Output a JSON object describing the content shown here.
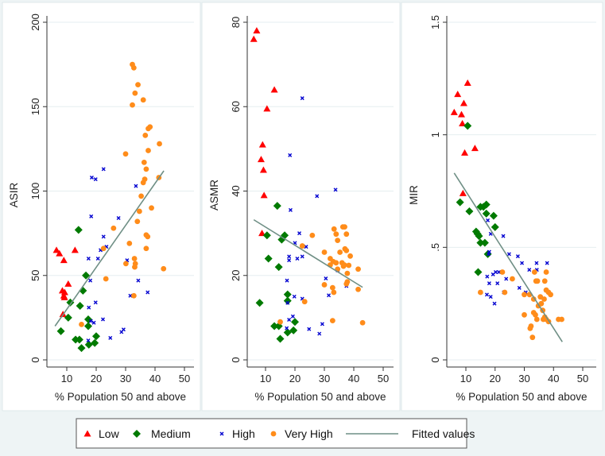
{
  "legend": {
    "items": [
      {
        "label": "Low",
        "marker": "triangle",
        "color": "#ff0000"
      },
      {
        "label": "Medium",
        "marker": "diamond",
        "color": "#007a00"
      },
      {
        "label": "High",
        "marker": "x",
        "color": "#0000d0"
      },
      {
        "label": "Very High",
        "marker": "circle",
        "color": "#ff8c1a"
      },
      {
        "label": "Fitted values",
        "marker": "line",
        "color": "#6f8f85"
      }
    ]
  },
  "chart_data": [
    {
      "type": "scatter",
      "ylabel": "ASIR",
      "xlabel": "% Population 50 and above",
      "xlim": [
        0,
        50
      ],
      "ylim": [
        0,
        200
      ],
      "xticks": [
        "10",
        "20",
        "30",
        "40",
        "50"
      ],
      "yticks": [
        "0",
        "50",
        "100",
        "150",
        "200"
      ],
      "grid": true,
      "series": [
        {
          "name": "Low",
          "points": [
            [
              6.5,
              65
            ],
            [
              7.5,
              63
            ],
            [
              9,
              59
            ],
            [
              12.8,
              65
            ],
            [
              10.5,
              45
            ],
            [
              8.5,
              41
            ],
            [
              9.3,
              40
            ],
            [
              9.2,
              37
            ],
            [
              9,
              38
            ],
            [
              8.7,
              27
            ]
          ]
        },
        {
          "name": "Medium",
          "points": [
            [
              14,
              77
            ],
            [
              16.5,
              50
            ],
            [
              15.5,
              41
            ],
            [
              11.2,
              34
            ],
            [
              14.5,
              32
            ],
            [
              10.5,
              25
            ],
            [
              17.3,
              24
            ],
            [
              17.3,
              20
            ],
            [
              8,
              17
            ],
            [
              13,
              12
            ],
            [
              14.3,
              12
            ],
            [
              20,
              14
            ],
            [
              17.5,
              9
            ],
            [
              19.5,
              10
            ],
            [
              15,
              7
            ]
          ]
        },
        {
          "name": "High",
          "points": [
            [
              22.5,
              113
            ],
            [
              18.5,
              108
            ],
            [
              19.8,
              107
            ],
            [
              33.5,
              103
            ],
            [
              18.3,
              85
            ],
            [
              27.6,
              84
            ],
            [
              22.5,
              73
            ],
            [
              23.5,
              67
            ],
            [
              21.5,
              65
            ],
            [
              17.4,
              60
            ],
            [
              20.6,
              60
            ],
            [
              30.5,
              59
            ],
            [
              18,
              47
            ],
            [
              34.3,
              47
            ],
            [
              37.5,
              40
            ],
            [
              31.6,
              38
            ],
            [
              19.8,
              34
            ],
            [
              17.5,
              31
            ],
            [
              22.3,
              24
            ],
            [
              18.2,
              23
            ],
            [
              19.2,
              22
            ],
            [
              29.3,
              18
            ],
            [
              28.6,
              16.5
            ],
            [
              24.8,
              13
            ],
            [
              17.3,
              11.5
            ]
          ]
        },
        {
          "name": "Very High",
          "points": [
            [
              32.3,
              175
            ],
            [
              32.8,
              173
            ],
            [
              34.2,
              163
            ],
            [
              33.2,
              158
            ],
            [
              36,
              154
            ],
            [
              32.3,
              151
            ],
            [
              38.3,
              138
            ],
            [
              37.7,
              137
            ],
            [
              36.7,
              133
            ],
            [
              41.5,
              128
            ],
            [
              30,
              122
            ],
            [
              37.7,
              124
            ],
            [
              36.3,
              117
            ],
            [
              37,
              113
            ],
            [
              36.5,
              107
            ],
            [
              36,
              105
            ],
            [
              41.3,
              108
            ],
            [
              35.3,
              97
            ],
            [
              38.8,
              90
            ],
            [
              34.7,
              88
            ],
            [
              34,
              82
            ],
            [
              25.9,
              78
            ],
            [
              37,
              74
            ],
            [
              37.5,
              73
            ],
            [
              31.3,
              69
            ],
            [
              22.5,
              66
            ],
            [
              37,
              66
            ],
            [
              33,
              60
            ],
            [
              33.3,
              57
            ],
            [
              33.1,
              55
            ],
            [
              30.1,
              57
            ],
            [
              42.9,
              54
            ],
            [
              23.3,
              48
            ],
            [
              32.8,
              38
            ],
            [
              15,
              21
            ]
          ]
        }
      ],
      "fitted": [
        [
          6,
          20
        ],
        [
          43,
          112
        ]
      ]
    },
    {
      "type": "scatter",
      "ylabel": "ASMR",
      "xlabel": "% Population 50 and above",
      "xlim": [
        0,
        50
      ],
      "ylim": [
        0,
        80
      ],
      "xticks": [
        "10",
        "20",
        "30",
        "40",
        "50"
      ],
      "yticks": [
        "0",
        "20",
        "40",
        "60",
        "80"
      ],
      "grid": true,
      "series": [
        {
          "name": "Low",
          "points": [
            [
              6,
              76
            ],
            [
              7,
              78
            ],
            [
              13,
              64
            ],
            [
              10.5,
              59.5
            ],
            [
              9,
              51
            ],
            [
              8.5,
              47.5
            ],
            [
              9.3,
              45
            ],
            [
              9.5,
              39
            ],
            [
              8.8,
              30
            ]
          ]
        },
        {
          "name": "Medium",
          "points": [
            [
              14,
              36.5
            ],
            [
              10.5,
              29.5
            ],
            [
              16.5,
              29.5
            ],
            [
              15.5,
              28.5
            ],
            [
              11,
              24
            ],
            [
              14.5,
              22
            ],
            [
              8,
              13.5
            ],
            [
              17.5,
              15.5
            ],
            [
              17.5,
              14
            ],
            [
              13,
              8
            ],
            [
              14.5,
              8
            ],
            [
              20,
              9
            ],
            [
              19.5,
              7
            ],
            [
              17.5,
              6.5
            ],
            [
              15,
              5
            ]
          ]
        },
        {
          "name": "High",
          "points": [
            [
              22.5,
              62
            ],
            [
              18.3,
              48.5
            ],
            [
              33.8,
              40.3
            ],
            [
              27.5,
              38.8
            ],
            [
              18.5,
              35.5
            ],
            [
              21.5,
              30
            ],
            [
              20,
              27.7
            ],
            [
              23.8,
              26.8
            ],
            [
              18,
              24.5
            ],
            [
              18,
              23.6
            ],
            [
              20.8,
              24
            ],
            [
              22.5,
              24.5
            ],
            [
              34.5,
              21.2
            ],
            [
              30.5,
              19.3
            ],
            [
              17.3,
              18.8
            ],
            [
              31.5,
              15.3
            ],
            [
              19.8,
              15
            ],
            [
              22.5,
              14.5
            ],
            [
              17.5,
              13.5
            ],
            [
              19.3,
              10.3
            ],
            [
              18,
              9.5
            ],
            [
              29.3,
              8.5
            ],
            [
              24.8,
              7.3
            ],
            [
              17.2,
              7.5
            ],
            [
              28.3,
              6.2
            ],
            [
              37.5,
              17.5
            ]
          ]
        },
        {
          "name": "Very High",
          "points": [
            [
              36.3,
              31.5
            ],
            [
              36.9,
              31.5
            ],
            [
              33.3,
              31
            ],
            [
              34,
              29.8
            ],
            [
              37.5,
              29.8
            ],
            [
              25.9,
              29.5
            ],
            [
              34.5,
              28.3
            ],
            [
              22.5,
              27
            ],
            [
              37,
              26.3
            ],
            [
              37.5,
              25.9
            ],
            [
              30,
              25.5
            ],
            [
              35.3,
              25.5
            ],
            [
              38.8,
              24.6
            ],
            [
              32,
              24
            ],
            [
              33,
              23.3
            ],
            [
              34,
              23
            ],
            [
              36,
              23
            ],
            [
              36.8,
              22.5
            ],
            [
              32,
              22.5
            ],
            [
              36.5,
              22.2
            ],
            [
              38.3,
              22.4
            ],
            [
              34.5,
              21.5
            ],
            [
              41.5,
              21.5
            ],
            [
              37.8,
              20.5
            ],
            [
              30,
              17.8
            ],
            [
              37.5,
              18
            ],
            [
              37.8,
              18.5
            ],
            [
              32.8,
              17.1
            ],
            [
              41.5,
              16.7
            ],
            [
              33.2,
              16
            ],
            [
              23.3,
              13.8
            ],
            [
              15,
              9
            ],
            [
              32.8,
              9.3
            ],
            [
              43,
              8.8
            ]
          ]
        }
      ],
      "fitted": [
        [
          6,
          33.2
        ],
        [
          43,
          17.2
        ]
      ]
    },
    {
      "type": "scatter",
      "ylabel": "MIR",
      "xlabel": "% Population 50 and above",
      "xlim": [
        0,
        50
      ],
      "ylim": [
        0,
        1.5
      ],
      "xticks": [
        "10",
        "20",
        "30",
        "40",
        "50"
      ],
      "yticks": [
        "0",
        ".5",
        "1",
        "1.5"
      ],
      "grid": true,
      "series": [
        {
          "name": "Low",
          "points": [
            [
              6,
              1.1
            ],
            [
              7.2,
              1.18
            ],
            [
              10.6,
              1.23
            ],
            [
              9.3,
              1.14
            ],
            [
              8.5,
              1.09
            ],
            [
              8.8,
              1.05
            ],
            [
              13.1,
              0.94
            ],
            [
              9.6,
              0.92
            ],
            [
              9,
              0.74
            ]
          ]
        },
        {
          "name": "Medium",
          "points": [
            [
              10.6,
              1.04
            ],
            [
              8,
              0.7
            ],
            [
              11.2,
              0.66
            ],
            [
              15,
              0.68
            ],
            [
              16,
              0.68
            ],
            [
              17,
              0.69
            ],
            [
              17,
              0.65
            ],
            [
              19.5,
              0.64
            ],
            [
              20,
              0.59
            ],
            [
              13.5,
              0.57
            ],
            [
              14,
              0.56
            ],
            [
              14.5,
              0.55
            ],
            [
              15,
              0.52
            ],
            [
              16.5,
              0.52
            ],
            [
              17.5,
              0.47
            ],
            [
              14.2,
              0.39
            ]
          ]
        },
        {
          "name": "High",
          "points": [
            [
              17.5,
              0.62
            ],
            [
              18.5,
              0.56
            ],
            [
              22.8,
              0.55
            ],
            [
              18,
              0.48
            ],
            [
              17.8,
              0.47
            ],
            [
              24.8,
              0.47
            ],
            [
              27.8,
              0.46
            ],
            [
              29.2,
              0.43
            ],
            [
              34.2,
              0.43
            ],
            [
              37.8,
              0.43
            ],
            [
              31.7,
              0.4
            ],
            [
              21.3,
              0.39
            ],
            [
              20.2,
              0.39
            ],
            [
              19.3,
              0.38
            ],
            [
              17.3,
              0.37
            ],
            [
              23.8,
              0.36
            ],
            [
              18,
              0.34
            ],
            [
              20.8,
              0.34
            ],
            [
              28.3,
              0.32
            ],
            [
              17.2,
              0.29
            ],
            [
              18.5,
              0.28
            ],
            [
              23,
              0.3
            ],
            [
              19.8,
              0.25
            ],
            [
              30.5,
              0.3
            ],
            [
              34.3,
              0.4
            ]
          ]
        },
        {
          "name": "Very High",
          "points": [
            [
              33.5,
              0.39
            ],
            [
              37.5,
              0.39
            ],
            [
              22.5,
              0.39
            ],
            [
              25.9,
              0.36
            ],
            [
              34,
              0.35
            ],
            [
              34.5,
              0.35
            ],
            [
              37,
              0.35
            ],
            [
              37.5,
              0.31
            ],
            [
              38.3,
              0.3
            ],
            [
              39,
              0.29
            ],
            [
              15,
              0.3
            ],
            [
              23.3,
              0.3
            ],
            [
              30,
              0.29
            ],
            [
              31.8,
              0.29
            ],
            [
              35.5,
              0.28
            ],
            [
              33.2,
              0.27
            ],
            [
              36.8,
              0.27
            ],
            [
              35.8,
              0.25
            ],
            [
              34.8,
              0.24
            ],
            [
              36.3,
              0.22
            ],
            [
              33.2,
              0.21
            ],
            [
              30,
              0.2
            ],
            [
              33.8,
              0.2
            ],
            [
              37,
              0.19
            ],
            [
              34.3,
              0.18
            ],
            [
              36.5,
              0.18
            ],
            [
              37.5,
              0.18
            ],
            [
              38.3,
              0.17
            ],
            [
              41.7,
              0.18
            ],
            [
              42.8,
              0.18
            ],
            [
              32.3,
              0.15
            ],
            [
              32,
              0.14
            ],
            [
              32.8,
              0.1
            ]
          ]
        }
      ],
      "fitted": [
        [
          6,
          0.83
        ],
        [
          43,
          0.08
        ]
      ]
    }
  ]
}
